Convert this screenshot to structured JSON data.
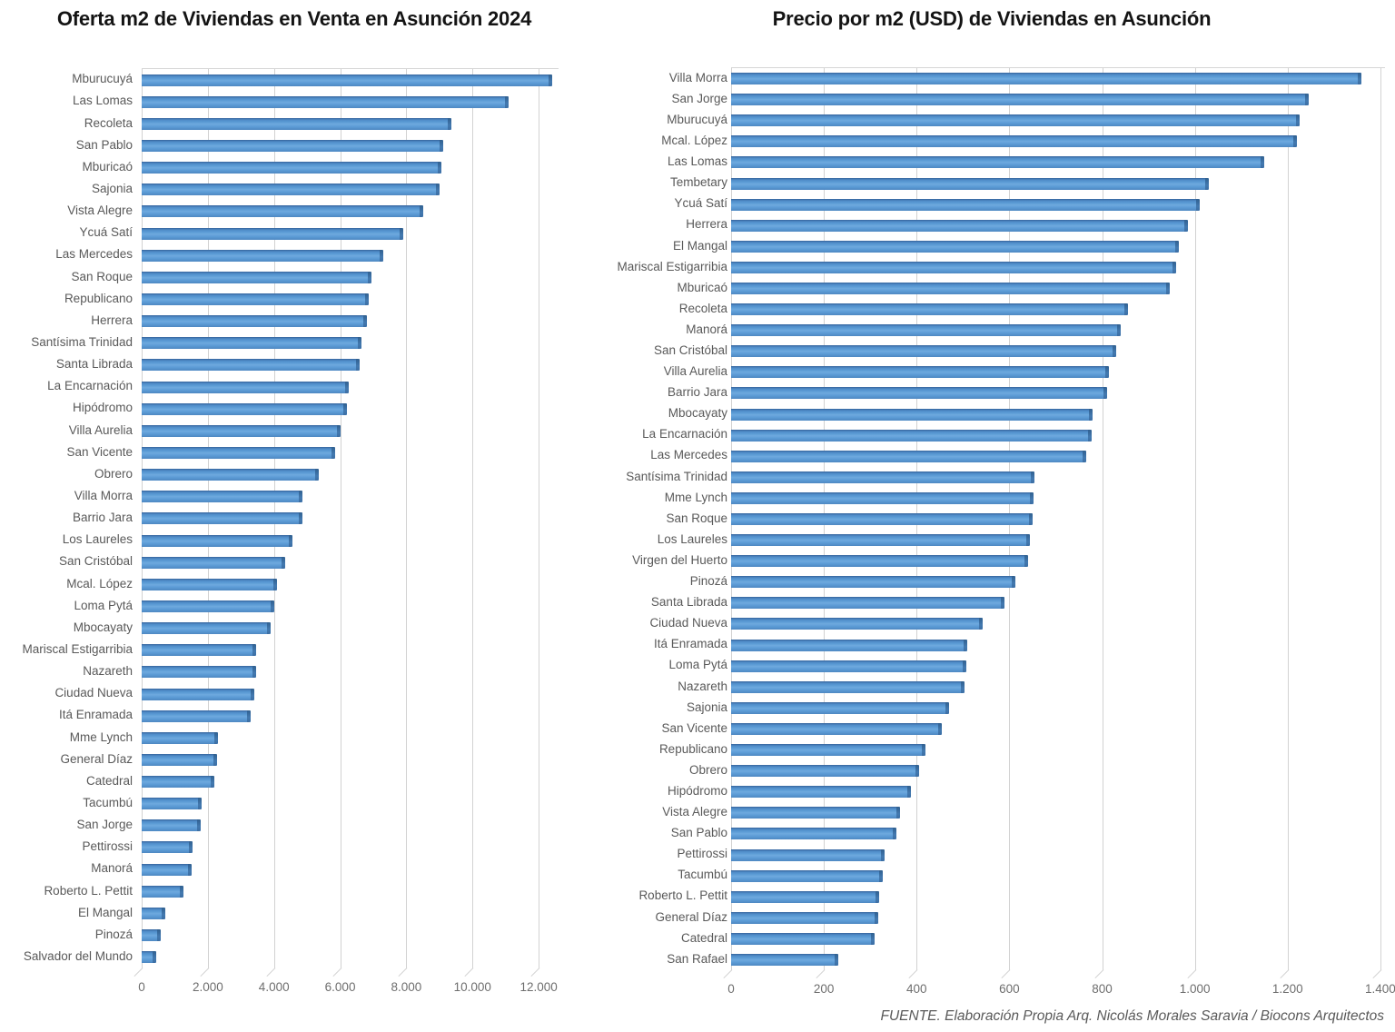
{
  "page": {
    "footer_text": "FUENTE. Elaboración Propia Arq. Nicolás Morales Saravia / Biocons Arquitectos"
  },
  "colors": {
    "bar": "#5B9BD5",
    "bar_edge": "#41719C",
    "gridline": "#D2D2D2",
    "category_label_text": "#595959",
    "tick_text": "#6E6E6E",
    "title_text": "#141414",
    "background": "#FFFFFF"
  },
  "chart_data": [
    {
      "type": "bar",
      "orientation": "horizontal",
      "title": "Oferta m2 de Viviendas en Venta en Asunción 2024",
      "xlabel": "",
      "ylabel": "",
      "xlim": [
        0,
        12600
      ],
      "grid": true,
      "legend": false,
      "x_ticks": [
        {
          "value": 0,
          "label": "0"
        },
        {
          "value": 2000,
          "label": "2.000"
        },
        {
          "value": 4000,
          "label": "4.000"
        },
        {
          "value": 6000,
          "label": "6.000"
        },
        {
          "value": 8000,
          "label": "8.000"
        },
        {
          "value": 10000,
          "label": "10.000"
        },
        {
          "value": 12000,
          "label": "12.000"
        }
      ],
      "categories": [
        "Mburucuyá",
        "Las Lomas",
        "Recoleta",
        "San Pablo",
        "Mburicaó",
        "Sajonia",
        "Vista Alegre",
        "Ycuá Satí",
        "Las Mercedes",
        "San Roque",
        "Republicano",
        "Herrera",
        "Santísima Trinidad",
        "Santa Librada",
        "La Encarnación",
        "Hipódromo",
        "Villa Aurelia",
        "San Vicente",
        "Obrero",
        "Villa Morra",
        "Barrio Jara",
        "Los Laureles",
        "San Cristóbal",
        "Mcal. López",
        "Loma Pytá",
        "Mbocayaty",
        "Mariscal Estigarribia",
        "Nazareth",
        "Ciudad Nueva",
        "Itá Enramada",
        "Mme Lynch",
        "General Díaz",
        "Catedral",
        "Tacumbú",
        "San Jorge",
        "Pettirossi",
        "Manorá",
        "Roberto L. Pettit",
        "El Mangal",
        "Pinozá",
        "Salvador del Mundo"
      ],
      "values": [
        12400,
        11100,
        9350,
        9100,
        9050,
        9000,
        8500,
        7900,
        7300,
        6950,
        6850,
        6800,
        6650,
        6600,
        6250,
        6200,
        6000,
        5850,
        5350,
        4850,
        4850,
        4550,
        4350,
        4100,
        4000,
        3900,
        3450,
        3450,
        3400,
        3300,
        2300,
        2270,
        2200,
        1800,
        1780,
        1550,
        1520,
        1250,
        700,
        570,
        450
      ]
    },
    {
      "type": "bar",
      "orientation": "horizontal",
      "title": "Precio por m2 (USD) de Viviendas en Asunción",
      "xlabel": "",
      "ylabel": "",
      "xlim": [
        0,
        1410
      ],
      "grid": true,
      "legend": false,
      "x_ticks": [
        {
          "value": 0,
          "label": "0"
        },
        {
          "value": 200,
          "label": "200"
        },
        {
          "value": 400,
          "label": "400"
        },
        {
          "value": 600,
          "label": "600"
        },
        {
          "value": 800,
          "label": "800"
        },
        {
          "value": 1000,
          "label": "1.000"
        },
        {
          "value": 1200,
          "label": "1.200"
        },
        {
          "value": 1400,
          "label": "1.400"
        }
      ],
      "categories": [
        "Villa Morra",
        "San Jorge",
        "Mburucuyá",
        "Mcal. López",
        "Las Lomas",
        "Tembetary",
        "Ycuá Satí",
        "Herrera",
        "El Mangal",
        "Mariscal Estigarribia",
        "Mburicaó",
        "Recoleta",
        "Manorá",
        "San Cristóbal",
        "Villa Aurelia",
        "Barrio Jara",
        "Mbocayaty",
        "La Encarnación",
        "Las Mercedes",
        "Santísima Trinidad",
        "Mme Lynch",
        "San Roque",
        "Los Laureles",
        "Virgen del Huerto",
        "Pinozá",
        "Santa Librada",
        "Ciudad Nueva",
        "Itá Enramada",
        "Loma Pytá",
        "Nazareth",
        "Sajonia",
        "San Vicente",
        "Republicano",
        "Obrero",
        "Hipódromo",
        "Vista Alegre",
        "San Pablo",
        "Pettirossi",
        "Tacumbú",
        "Roberto L. Pettit",
        "General Díaz",
        "Catedral",
        "San Rafael"
      ],
      "values": [
        1360,
        1245,
        1225,
        1220,
        1150,
        1030,
        1010,
        985,
        965,
        960,
        945,
        855,
        840,
        830,
        815,
        810,
        780,
        778,
        765,
        655,
        652,
        650,
        645,
        640,
        612,
        590,
        542,
        510,
        507,
        503,
        470,
        455,
        420,
        405,
        387,
        365,
        357,
        330,
        327,
        320,
        317,
        310,
        232
      ]
    }
  ]
}
